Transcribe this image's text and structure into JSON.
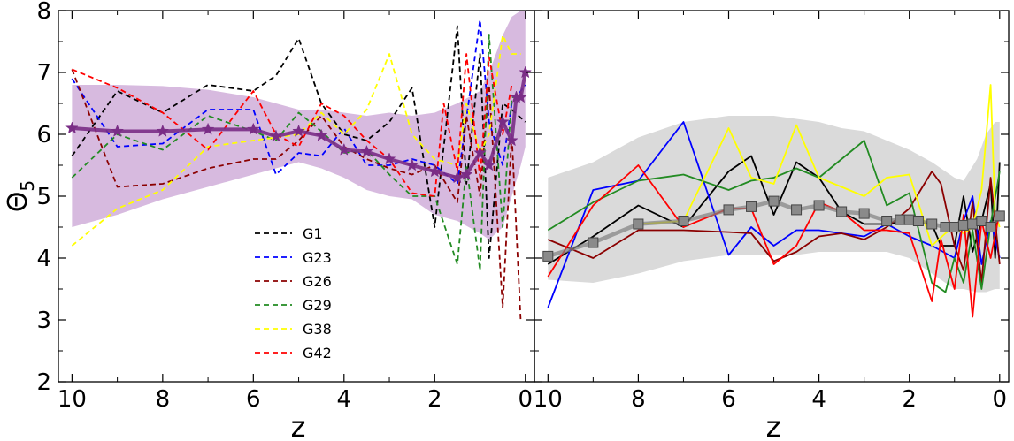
{
  "chart_data": [
    {
      "type": "line",
      "panel": "left",
      "title": "",
      "xlabel": "z",
      "ylabel": "Θ",
      "ylabel_subscript": "5",
      "xlim": [
        10.3,
        -0.2
      ],
      "ylim": [
        2,
        8
      ],
      "x_ticks": [
        10,
        8,
        6,
        4,
        2,
        0
      ],
      "y_ticks": [
        2,
        3,
        4,
        5,
        6,
        7,
        8
      ],
      "legend_placement": "lower-center",
      "line_style": "dashed",
      "band": {
        "color": "#c9a3d4",
        "x": [
          10,
          9,
          8,
          7,
          6,
          5.5,
          5,
          4.5,
          4,
          3.5,
          3,
          2.5,
          2,
          1.5,
          1,
          0.8,
          0.5,
          0.3,
          0.1,
          0
        ],
        "upper": [
          6.8,
          6.8,
          6.78,
          6.72,
          6.6,
          6.5,
          6.4,
          6.4,
          6.35,
          6.3,
          6.35,
          6.3,
          6.35,
          6.5,
          6.7,
          7.0,
          7.6,
          7.9,
          8.0,
          8.0
        ],
        "lower": [
          4.5,
          4.7,
          4.95,
          5.15,
          5.35,
          5.45,
          5.55,
          5.45,
          5.3,
          5.1,
          5.0,
          4.95,
          4.7,
          4.6,
          4.4,
          4.3,
          4.5,
          5.0,
          5.5,
          5.8
        ]
      },
      "mean": {
        "color": "#7a2d86",
        "marker": "star",
        "x": [
          10,
          9,
          8,
          7,
          6,
          5.5,
          5,
          4.5,
          4,
          3.5,
          3,
          2.5,
          2,
          1.5,
          1.3,
          1,
          0.8,
          0.5,
          0.3,
          0.2,
          0.1,
          0
        ],
        "values": [
          6.1,
          6.05,
          6.05,
          6.08,
          6.08,
          5.97,
          6.05,
          5.98,
          5.75,
          5.72,
          5.6,
          5.5,
          5.4,
          5.3,
          5.35,
          5.7,
          5.5,
          6.2,
          5.9,
          6.6,
          6.6,
          7.0
        ]
      },
      "series": [
        {
          "name": "G1",
          "color": "#000000",
          "x": [
            10,
            9,
            8,
            7,
            6,
            5.5,
            5,
            4.5,
            4,
            3.5,
            3,
            2.5,
            2,
            1.5,
            1.3,
            1,
            0.8,
            0.5,
            0.3,
            0
          ],
          "values": [
            5.65,
            6.7,
            6.35,
            6.8,
            6.7,
            6.95,
            7.55,
            6.5,
            6.0,
            5.9,
            6.2,
            6.75,
            4.5,
            7.75,
            5.2,
            7.3,
            4.0,
            6.5,
            6.4,
            6.2
          ]
        },
        {
          "name": "G23",
          "color": "#0000ff",
          "x": [
            10,
            9,
            8,
            7,
            6,
            5.5,
            5,
            4.5,
            4,
            3.5,
            3,
            2.5,
            2,
            1.5,
            1,
            0.8,
            0.5,
            0.3,
            0
          ],
          "values": [
            6.9,
            5.8,
            5.85,
            6.4,
            6.4,
            5.35,
            5.7,
            5.65,
            6.1,
            5.5,
            5.5,
            5.6,
            5.5,
            5.2,
            7.85,
            6.2,
            5.5,
            6.5,
            6.8
          ]
        },
        {
          "name": "G26",
          "color": "#8b0000",
          "x": [
            10,
            9,
            8,
            7,
            6,
            5.5,
            5,
            4.5,
            4,
            3.5,
            3,
            2.5,
            2,
            1.5,
            1.3,
            1,
            0.8,
            0.5,
            0.3,
            0.1
          ],
          "values": [
            7.05,
            5.15,
            5.2,
            5.45,
            5.6,
            5.6,
            5.9,
            6.3,
            5.8,
            5.6,
            5.45,
            5.35,
            5.5,
            4.9,
            6.3,
            5.0,
            6.8,
            3.2,
            6.0,
            2.95
          ]
        },
        {
          "name": "G29",
          "color": "#228b22",
          "x": [
            10,
            9,
            8,
            7,
            6,
            5.5,
            5,
            4.5,
            4,
            3.5,
            3,
            2.5,
            2,
            1.5,
            1.3,
            1,
            0.8,
            0.5,
            0.3,
            0.1
          ],
          "values": [
            5.3,
            6.0,
            5.75,
            6.3,
            6.05,
            5.9,
            6.35,
            6.05,
            5.7,
            5.75,
            5.35,
            5.0,
            5.0,
            3.9,
            5.5,
            3.8,
            7.6,
            4.5,
            6.6,
            6.6
          ]
        },
        {
          "name": "G38",
          "color": "#ffff00",
          "x": [
            10,
            9,
            8,
            7,
            6,
            5.5,
            5,
            4.5,
            4,
            3.5,
            3,
            2.5,
            2,
            1.5,
            1.3,
            1,
            0.8,
            0.5,
            0.3,
            0.1
          ],
          "values": [
            4.2,
            4.8,
            5.1,
            5.8,
            5.9,
            5.95,
            6.0,
            6.35,
            6.0,
            6.4,
            7.3,
            6.0,
            5.6,
            5.5,
            6.5,
            5.7,
            6.0,
            7.6,
            7.3,
            7.3
          ]
        },
        {
          "name": "G42",
          "color": "#ff0000",
          "x": [
            10,
            9,
            8,
            7,
            6,
            5.5,
            5,
            4.5,
            4,
            3.5,
            3,
            2.5,
            2,
            1.8,
            1.5,
            1.3,
            1,
            0.8,
            0.5,
            0.3
          ],
          "values": [
            7.05,
            6.75,
            6.35,
            5.75,
            6.7,
            6.0,
            5.8,
            6.5,
            6.3,
            5.9,
            5.6,
            5.05,
            5.0,
            6.5,
            5.4,
            7.3,
            5.3,
            7.25,
            6.0,
            6.8
          ]
        }
      ]
    },
    {
      "type": "line",
      "panel": "right",
      "title": "",
      "xlabel": "z",
      "ylabel": "",
      "xlim": [
        10.3,
        -0.2
      ],
      "ylim": [
        2,
        8
      ],
      "x_ticks": [
        10,
        8,
        6,
        4,
        2,
        0
      ],
      "y_ticks": [
        2,
        3,
        4,
        5,
        6,
        7,
        8
      ],
      "line_style": "solid",
      "band": {
        "color": "#d8d8d8",
        "x": [
          10,
          9,
          8,
          7,
          6,
          5.5,
          5,
          4.5,
          4,
          3.5,
          3,
          2.5,
          2,
          1.5,
          1,
          0.8,
          0.5,
          0.3,
          0.1,
          0
        ],
        "upper": [
          5.3,
          5.55,
          5.95,
          6.2,
          6.3,
          6.3,
          6.3,
          6.25,
          6.2,
          6.1,
          6.05,
          5.9,
          5.75,
          5.55,
          5.3,
          5.25,
          5.6,
          6.0,
          6.2,
          6.2
        ],
        "lower": [
          3.65,
          3.6,
          3.75,
          3.95,
          4.05,
          4.05,
          4.05,
          4.05,
          4.1,
          4.1,
          4.1,
          4.1,
          4.0,
          3.75,
          3.5,
          3.5,
          3.45,
          3.45,
          3.5,
          3.5
        ]
      },
      "mean": {
        "color": "#808080",
        "marker": "square",
        "x": [
          10,
          9,
          8,
          7,
          6,
          5.5,
          5,
          4.5,
          4,
          3.5,
          3,
          2.5,
          2.2,
          2,
          1.8,
          1.5,
          1.2,
          1,
          0.8,
          0.6,
          0.4,
          0.2,
          0
        ],
        "values": [
          4.03,
          4.25,
          4.55,
          4.6,
          4.78,
          4.83,
          4.92,
          4.78,
          4.85,
          4.75,
          4.72,
          4.6,
          4.62,
          4.62,
          4.6,
          4.55,
          4.5,
          4.5,
          4.53,
          4.55,
          4.6,
          4.5,
          4.68
        ]
      },
      "series": [
        {
          "name": "G1",
          "color": "#000000",
          "x": [
            10,
            9,
            8,
            7,
            6,
            5.5,
            5,
            4.5,
            4,
            3.5,
            3,
            2.5,
            2,
            1.5,
            1.3,
            1,
            0.8,
            0.6,
            0.4,
            0.2,
            0.1,
            0
          ],
          "values": [
            3.9,
            4.35,
            4.85,
            4.5,
            5.4,
            5.65,
            4.7,
            5.55,
            5.3,
            4.75,
            4.55,
            4.55,
            4.6,
            4.55,
            4.2,
            4.2,
            5.0,
            4.1,
            4.6,
            5.2,
            4.0,
            5.55
          ]
        },
        {
          "name": "G23",
          "color": "#0000ff",
          "x": [
            10,
            9,
            8,
            7,
            6,
            5.5,
            5,
            4.5,
            4,
            3.5,
            3,
            2.5,
            2,
            1.5,
            1,
            0.8,
            0.6,
            0.4,
            0.2,
            0
          ],
          "values": [
            3.2,
            5.1,
            5.25,
            6.2,
            4.05,
            4.5,
            4.2,
            4.45,
            4.45,
            4.4,
            4.35,
            4.55,
            4.35,
            4.2,
            4.0,
            4.6,
            5.0,
            3.9,
            4.6,
            4.0
          ]
        },
        {
          "name": "G26",
          "color": "#8b0000",
          "x": [
            10,
            9,
            8,
            7,
            6,
            5.5,
            5,
            4.5,
            4,
            3.5,
            3,
            2.5,
            2,
            1.5,
            1.3,
            1,
            0.8,
            0.6,
            0.4,
            0.2,
            0
          ],
          "values": [
            4.3,
            4.0,
            4.45,
            4.45,
            4.42,
            4.4,
            3.95,
            4.1,
            4.35,
            4.4,
            4.3,
            4.5,
            4.8,
            5.4,
            5.2,
            4.2,
            3.8,
            4.9,
            3.6,
            5.3,
            3.9
          ]
        },
        {
          "name": "G29",
          "color": "#228b22",
          "x": [
            10,
            9,
            8,
            7,
            6,
            5.5,
            5,
            4.5,
            4,
            3.5,
            3,
            2.5,
            2,
            1.5,
            1.2,
            1,
            0.8,
            0.6,
            0.4,
            0.2,
            0
          ],
          "values": [
            4.45,
            4.9,
            5.25,
            5.35,
            5.1,
            5.25,
            5.3,
            5.45,
            5.3,
            5.6,
            5.9,
            4.85,
            5.05,
            3.6,
            3.45,
            4.0,
            3.6,
            4.45,
            3.5,
            4.55,
            5.4
          ]
        },
        {
          "name": "G38",
          "color": "#ffff00",
          "x": [
            8,
            7,
            6,
            5.5,
            5,
            4.5,
            4,
            3.5,
            3,
            2.5,
            2,
            1.5,
            1.2,
            1,
            0.8,
            0.6,
            0.4,
            0.2,
            0.1,
            0
          ],
          "values": [
            4.55,
            4.6,
            6.1,
            5.3,
            5.2,
            6.15,
            5.3,
            5.15,
            5.0,
            5.3,
            5.35,
            4.2,
            4.4,
            4.5,
            4.4,
            4.5,
            5.1,
            6.8,
            4.7,
            4.5
          ]
        },
        {
          "name": "G42",
          "color": "#ff0000",
          "x": [
            10,
            9,
            8,
            7,
            6,
            5.5,
            5,
            4.5,
            4,
            3.5,
            3,
            2.5,
            2,
            1.5,
            1.3,
            1,
            0.8,
            0.6,
            0.4,
            0.2,
            0
          ],
          "values": [
            3.7,
            4.85,
            5.5,
            4.5,
            4.8,
            4.8,
            3.9,
            4.2,
            4.9,
            4.75,
            4.45,
            4.45,
            4.4,
            3.3,
            4.3,
            3.5,
            4.7,
            3.05,
            4.6,
            4.0,
            4.75
          ]
        }
      ]
    }
  ]
}
